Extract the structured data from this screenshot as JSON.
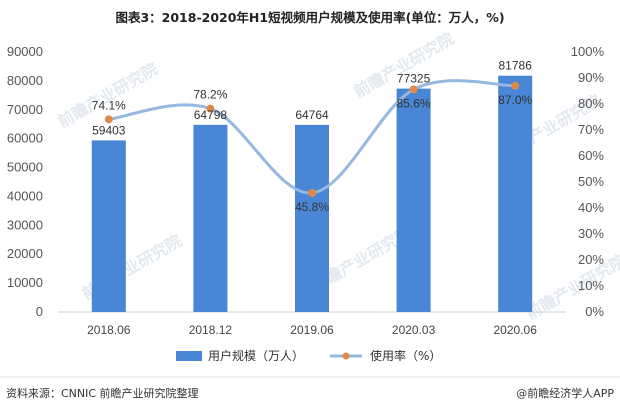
{
  "title": "图表3：2018-2020年H1短视频用户规模及使用率(单位：万人，%)",
  "source": "资料来源：CNNIC  前瞻产业研究院整理",
  "brand": "@前瞻经济学人APP",
  "watermark": "前瞻产业研究院",
  "colors": {
    "bar": "#4a86d6",
    "line": "#94b8df",
    "marker": "#e08a4a"
  },
  "chart_data": {
    "type": "bar",
    "categories": [
      "2018.06",
      "2018.12",
      "2019.06",
      "2020.03",
      "2020.06"
    ],
    "series": [
      {
        "name": "用户规模（万人）",
        "type": "bar",
        "axis": "left",
        "values": [
          59403,
          64798,
          64764,
          77325,
          81786
        ],
        "labels": [
          "59403",
          "64798",
          "64764",
          "77325",
          "81786"
        ]
      },
      {
        "name": "使用率（%）",
        "type": "line",
        "axis": "right",
        "smooth": true,
        "values": [
          74.1,
          78.2,
          45.8,
          85.6,
          87.0
        ],
        "labels": [
          "74.1%",
          "78.2%",
          "45.8%",
          "85.6%",
          "87.0%"
        ]
      }
    ],
    "y_left": {
      "ylim": [
        0,
        90000
      ],
      "ticks": [
        "0",
        "10000",
        "20000",
        "30000",
        "40000",
        "50000",
        "60000",
        "70000",
        "80000",
        "90000"
      ]
    },
    "y_right": {
      "ylim": [
        0,
        100
      ],
      "ticks": [
        "0%",
        "10%",
        "20%",
        "30%",
        "40%",
        "50%",
        "60%",
        "70%",
        "80%",
        "90%",
        "100%"
      ]
    },
    "grid": false,
    "legend": "bottom"
  }
}
